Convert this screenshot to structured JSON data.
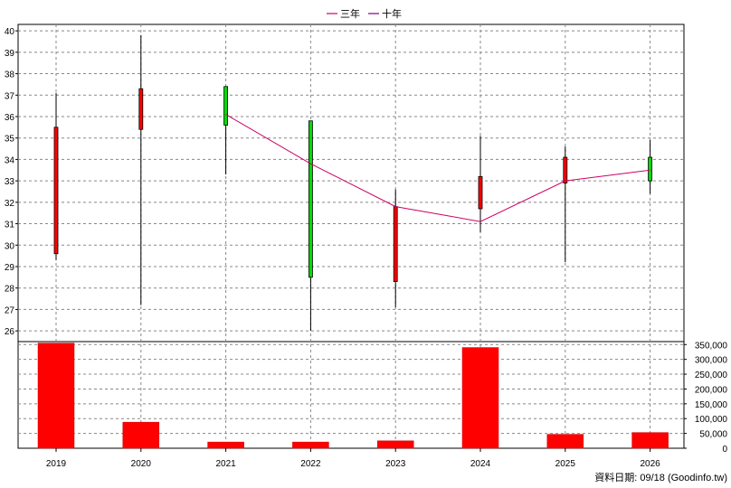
{
  "legend": {
    "three_year": "三年",
    "ten_year": "十年"
  },
  "footer": "資料日期: 09/18 (Goodinfo.tw)",
  "colors": {
    "up": "#ff0000",
    "down": "#00dd00",
    "volume": "#ff0000",
    "ma3": "#cc0066",
    "ma10": "#800080",
    "grid": "#888888"
  },
  "chart_data": {
    "type": "candlestick",
    "categories": [
      "2019",
      "2020",
      "2021",
      "2022",
      "2023",
      "2024",
      "2025",
      "2026"
    ],
    "price_axis": {
      "ylim": [
        25.5,
        40.3
      ],
      "ticks": [
        26,
        27,
        28,
        29,
        30,
        31,
        32,
        33,
        34,
        35,
        36,
        37,
        38,
        39,
        40
      ]
    },
    "candles": [
      {
        "x": "2019",
        "open": 29.6,
        "close": 35.5,
        "high": 37.1,
        "low": 29.3
      },
      {
        "x": "2020",
        "open": 35.4,
        "close": 37.3,
        "high": 39.8,
        "low": 27.2
      },
      {
        "x": "2021",
        "open": 37.4,
        "close": 35.6,
        "high": 37.4,
        "low": 33.3
      },
      {
        "x": "2022",
        "open": 35.8,
        "close": 28.5,
        "high": 35.8,
        "low": 26.0
      },
      {
        "x": "2023",
        "open": 28.3,
        "close": 31.8,
        "high": 32.6,
        "low": 27.1
      },
      {
        "x": "2024",
        "open": 31.7,
        "close": 33.2,
        "high": 35.1,
        "low": 30.6
      },
      {
        "x": "2025",
        "open": 32.9,
        "close": 34.1,
        "high": 34.6,
        "low": 29.2
      },
      {
        "x": "2026",
        "open": 34.1,
        "close": 33.0,
        "high": 34.9,
        "low": 32.4
      }
    ],
    "series": [
      {
        "name": "三年",
        "x": [
          "2021",
          "2022",
          "2023",
          "2024",
          "2025",
          "2026"
        ],
        "values": [
          36.1,
          33.8,
          31.8,
          31.1,
          33.0,
          33.5
        ]
      }
    ],
    "volume": {
      "ylim": [
        0,
        360000
      ],
      "ticks": [
        0,
        50000,
        100000,
        150000,
        200000,
        250000,
        300000,
        350000
      ],
      "tick_labels": [
        "0",
        "50,000",
        "100,000",
        "150,000",
        "200,000",
        "250,000",
        "300,000",
        "350,000"
      ],
      "values": [
        355000,
        88000,
        21000,
        21000,
        25000,
        340000,
        47000,
        53000
      ]
    },
    "grid": true,
    "legend_position": "top-center"
  }
}
